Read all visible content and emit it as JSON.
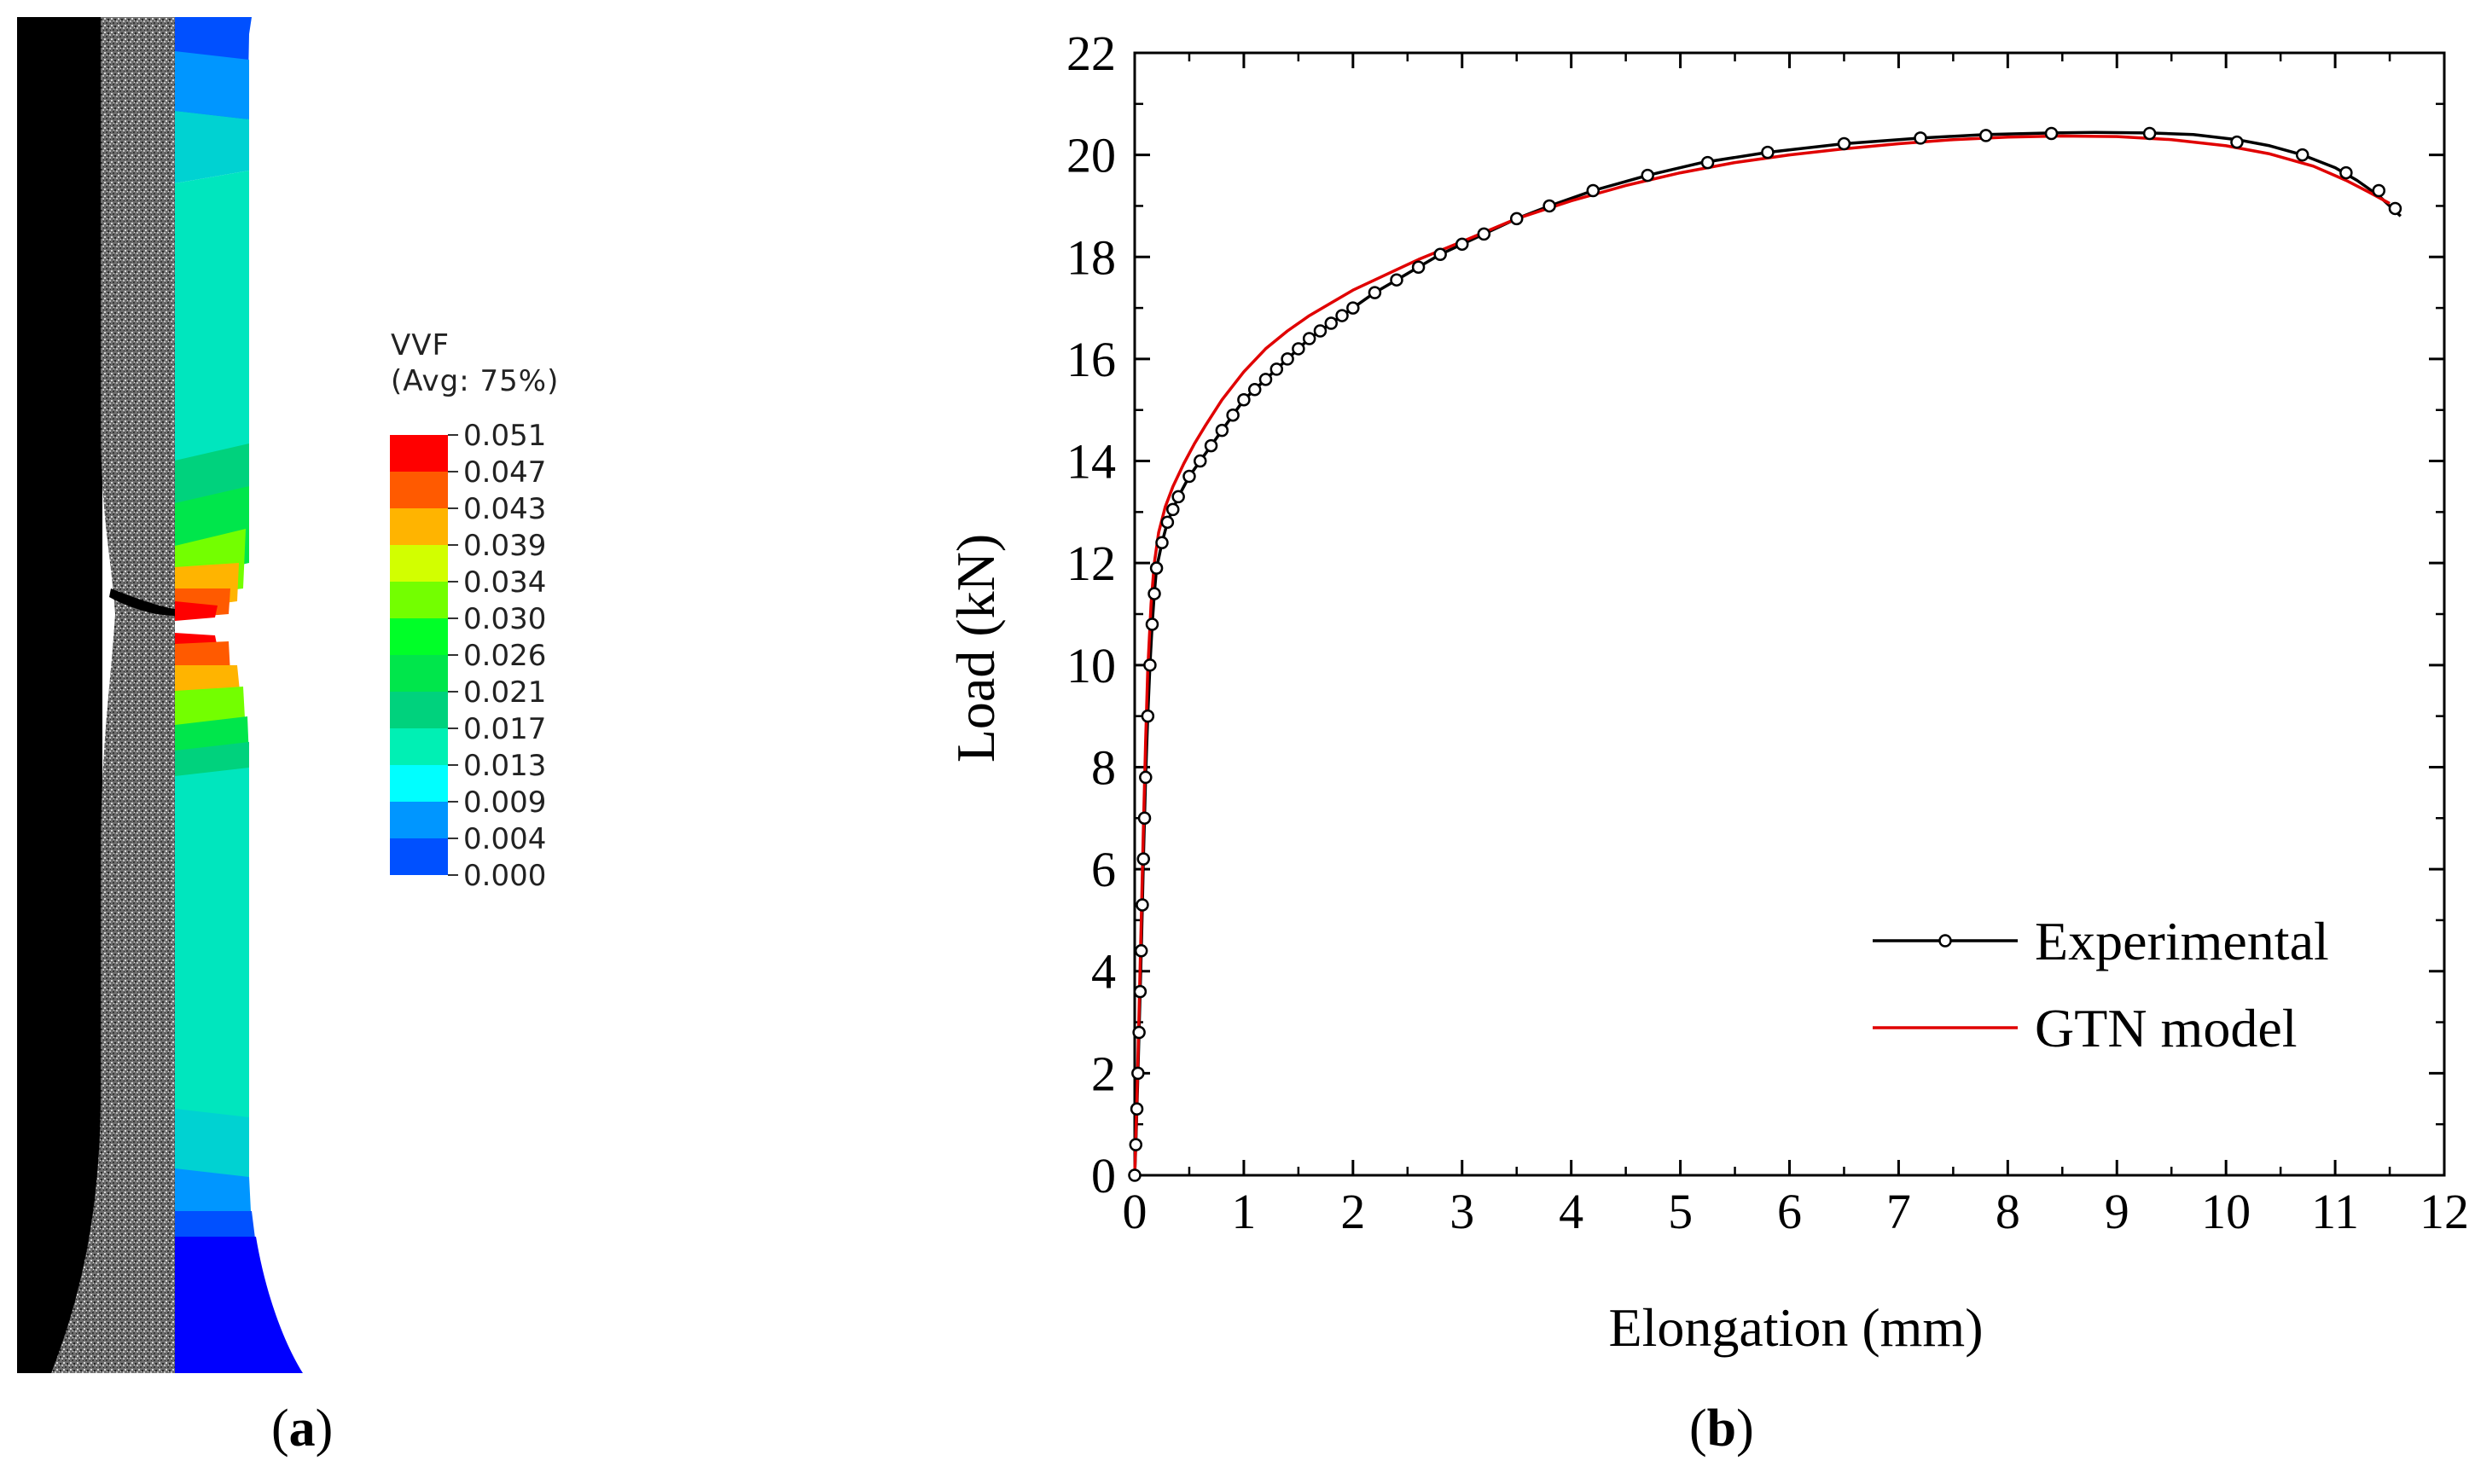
{
  "panel_a": {
    "legend": {
      "title": "VVF",
      "subtitle": "(Avg: 75%)",
      "values": [
        "0.051",
        "0.047",
        "0.043",
        "0.039",
        "0.034",
        "0.030",
        "0.026",
        "0.021",
        "0.017",
        "0.013",
        "0.009",
        "0.004",
        "0.000"
      ],
      "colors": [
        "#ff0000",
        "#ff5a00",
        "#ffb400",
        "#d2ff00",
        "#73ff00",
        "#00ff28",
        "#00e64b",
        "#00d27d",
        "#00f0b4",
        "#00ffff",
        "#0096ff",
        "#0050ff",
        "#0000ff"
      ]
    },
    "caption_open": "(",
    "caption_letter": "a",
    "caption_close": ")"
  },
  "panel_b": {
    "caption_open": "(",
    "caption_letter": "b",
    "caption_close": ")"
  },
  "chart_data": {
    "type": "line",
    "xlabel": "Elongation (mm)",
    "ylabel": "Load (kN)",
    "xlim": [
      0,
      12
    ],
    "ylim": [
      0,
      22
    ],
    "xticks": [
      "0",
      "1",
      "2",
      "3",
      "4",
      "5",
      "6",
      "7",
      "8",
      "9",
      "10",
      "11",
      "12"
    ],
    "yticks": [
      "0",
      "2",
      "4",
      "6",
      "8",
      "10",
      "12",
      "14",
      "16",
      "18",
      "20",
      "22"
    ],
    "legend_position": "bottom-right",
    "series": [
      {
        "name": "Experimental",
        "color": "#000000",
        "marker": "open-circle",
        "x": [
          0.0,
          0.01,
          0.02,
          0.03,
          0.04,
          0.05,
          0.06,
          0.07,
          0.08,
          0.09,
          0.1,
          0.12,
          0.14,
          0.16,
          0.18,
          0.2,
          0.25,
          0.3,
          0.4,
          0.5,
          0.6,
          0.7,
          0.8,
          0.9,
          1.0,
          1.1,
          1.2,
          1.3,
          1.4,
          1.5,
          1.6,
          1.7,
          1.8,
          1.9,
          2.0,
          2.2,
          2.4,
          2.6,
          2.8,
          3.0,
          3.2,
          3.5,
          3.8,
          4.2,
          4.7,
          5.2,
          5.8,
          6.5,
          7.2,
          7.8,
          8.4,
          8.8,
          9.3,
          9.7,
          10.1,
          10.4,
          10.7,
          11.0,
          11.2,
          11.4,
          11.5,
          11.6
        ],
        "y": [
          0.0,
          0.6,
          1.3,
          2.0,
          2.8,
          3.6,
          4.4,
          5.3,
          6.2,
          7.0,
          7.8,
          9.0,
          10.0,
          10.8,
          11.4,
          11.9,
          12.4,
          12.8,
          13.3,
          13.7,
          14.0,
          14.3,
          14.6,
          14.9,
          15.2,
          15.4,
          15.6,
          15.8,
          16.0,
          16.2,
          16.4,
          16.55,
          16.7,
          16.85,
          17.0,
          17.3,
          17.55,
          17.8,
          18.05,
          18.25,
          18.45,
          18.75,
          19.0,
          19.3,
          19.6,
          19.85,
          20.05,
          20.22,
          20.33,
          20.4,
          20.43,
          20.44,
          20.43,
          20.4,
          20.3,
          20.18,
          20.0,
          19.75,
          19.5,
          19.2,
          19.0,
          18.8
        ],
        "markers_x": [
          0.0,
          0.01,
          0.02,
          0.03,
          0.04,
          0.05,
          0.06,
          0.07,
          0.08,
          0.09,
          0.1,
          0.12,
          0.14,
          0.16,
          0.18,
          0.2,
          0.25,
          0.3,
          0.35,
          0.4,
          0.5,
          0.6,
          0.7,
          0.8,
          0.9,
          1.0,
          1.1,
          1.2,
          1.3,
          1.4,
          1.5,
          1.6,
          1.7,
          1.8,
          1.9,
          2.0,
          2.2,
          2.4,
          2.6,
          2.8,
          3.0,
          3.2,
          3.5,
          3.8,
          4.2,
          4.7,
          5.25,
          5.8,
          6.5,
          7.2,
          7.8,
          8.4,
          9.3,
          10.1,
          10.7,
          11.1,
          11.4,
          11.55
        ],
        "markers_y": [
          0.0,
          0.6,
          1.3,
          2.0,
          2.8,
          3.6,
          4.4,
          5.3,
          6.2,
          7.0,
          7.8,
          9.0,
          10.0,
          10.8,
          11.4,
          11.9,
          12.4,
          12.8,
          13.05,
          13.3,
          13.7,
          14.0,
          14.3,
          14.6,
          14.9,
          15.2,
          15.4,
          15.6,
          15.8,
          16.0,
          16.2,
          16.4,
          16.55,
          16.7,
          16.85,
          17.0,
          17.3,
          17.55,
          17.8,
          18.05,
          18.25,
          18.45,
          18.75,
          19.0,
          19.3,
          19.6,
          19.85,
          20.05,
          20.22,
          20.33,
          20.38,
          20.42,
          20.42,
          20.25,
          20.0,
          19.65,
          19.3,
          18.95
        ]
      },
      {
        "name": "GTN model",
        "color": "#e00000",
        "marker": "none",
        "x": [
          0.0,
          0.02,
          0.04,
          0.06,
          0.08,
          0.1,
          0.12,
          0.15,
          0.18,
          0.22,
          0.28,
          0.35,
          0.45,
          0.55,
          0.65,
          0.8,
          1.0,
          1.2,
          1.4,
          1.6,
          1.8,
          2.0,
          2.3,
          2.6,
          3.0,
          3.5,
          4.0,
          4.5,
          5.0,
          5.5,
          6.0,
          6.5,
          7.0,
          7.5,
          8.0,
          8.5,
          9.0,
          9.5,
          10.0,
          10.4,
          10.8,
          11.1,
          11.3,
          11.5
        ],
        "y": [
          0.0,
          1.5,
          3.2,
          5.0,
          6.8,
          8.5,
          9.9,
          11.2,
          12.0,
          12.6,
          13.1,
          13.5,
          13.95,
          14.35,
          14.7,
          15.2,
          15.75,
          16.2,
          16.55,
          16.85,
          17.1,
          17.35,
          17.65,
          17.95,
          18.3,
          18.75,
          19.1,
          19.4,
          19.65,
          19.85,
          20.0,
          20.12,
          20.22,
          20.3,
          20.35,
          20.37,
          20.36,
          20.3,
          20.18,
          20.02,
          19.78,
          19.5,
          19.28,
          19.05
        ]
      }
    ]
  }
}
